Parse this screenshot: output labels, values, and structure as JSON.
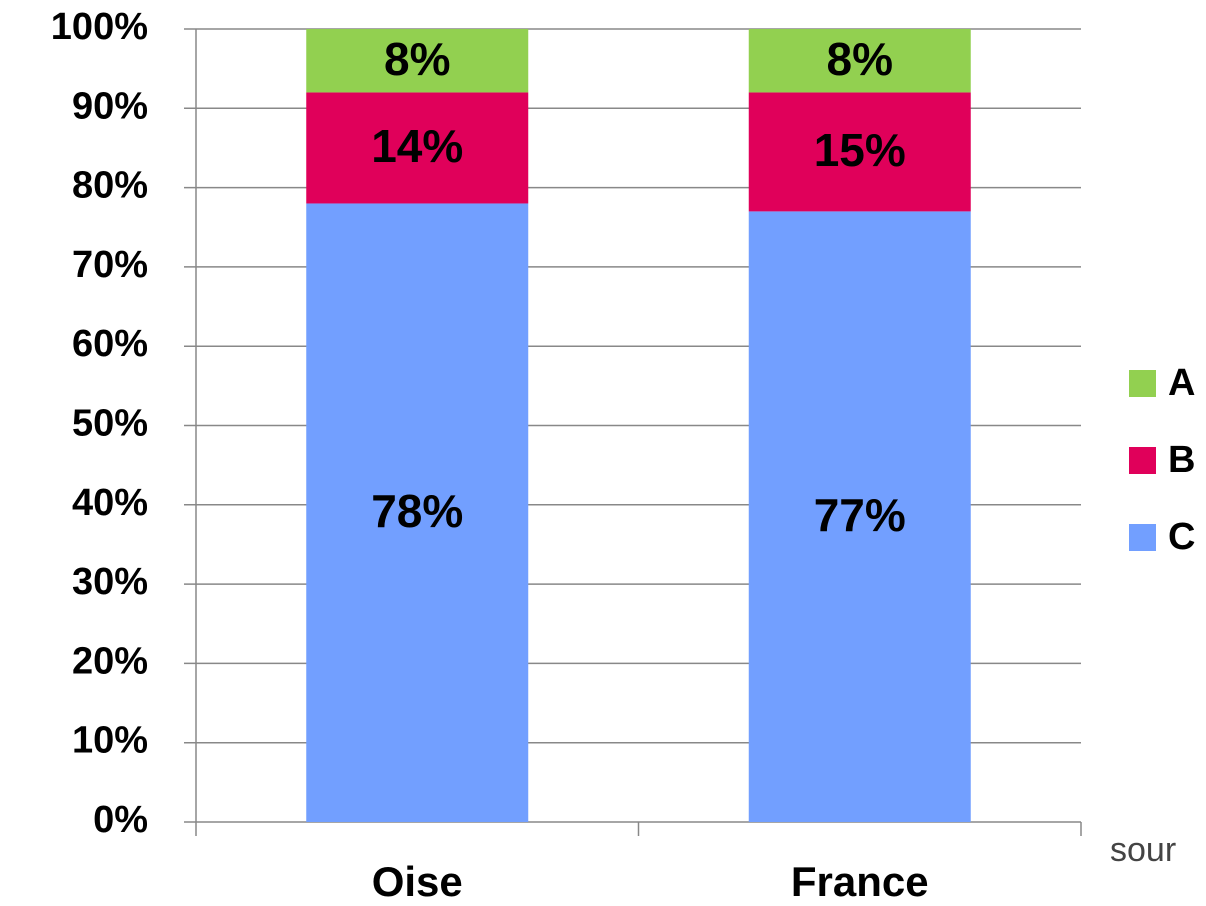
{
  "chart_data": {
    "type": "stacked_bar",
    "categories": [
      "Oise",
      "France"
    ],
    "series": [
      {
        "name": "A",
        "color": "#92d050",
        "values": [
          8,
          8
        ],
        "value_labels": [
          "8%",
          "8%"
        ]
      },
      {
        "name": "B",
        "color": "#e0005a",
        "values": [
          14,
          15
        ],
        "value_labels": [
          "14%",
          "15%"
        ]
      },
      {
        "name": "C",
        "color": "#729fff",
        "values": [
          78,
          77
        ],
        "value_labels": [
          "78%",
          "77%"
        ]
      }
    ],
    "ylim": [
      0,
      100
    ],
    "yticks": [
      {
        "value": 0,
        "label": "0%"
      },
      {
        "value": 10,
        "label": "10%"
      },
      {
        "value": 20,
        "label": "20%"
      },
      {
        "value": 30,
        "label": "30%"
      },
      {
        "value": 40,
        "label": "40%"
      },
      {
        "value": 50,
        "label": "50%"
      },
      {
        "value": 60,
        "label": "60%"
      },
      {
        "value": 70,
        "label": "70%"
      },
      {
        "value": 80,
        "label": "80%"
      },
      {
        "value": 90,
        "label": "90%"
      },
      {
        "value": 100,
        "label": "100%"
      }
    ],
    "grid": true,
    "legend": "right",
    "source": "sour"
  }
}
